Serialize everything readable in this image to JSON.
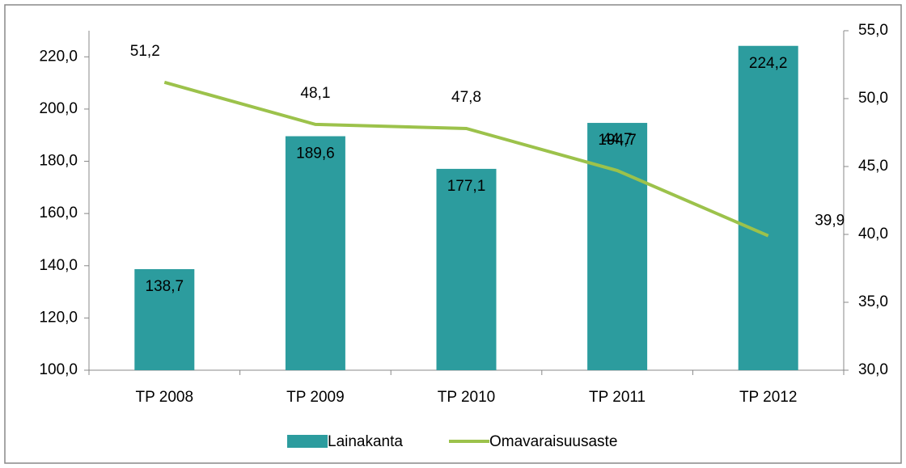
{
  "chart_data": {
    "type": "bar_line",
    "categories": [
      "TP 2008",
      "TP 2009",
      "TP 2010",
      "TP 2011",
      "TP 2012"
    ],
    "series": [
      {
        "name": "Lainakanta",
        "type": "bar",
        "color": "#2c9c9e",
        "values": [
          138.7,
          189.6,
          177.1,
          194.7,
          224.2
        ],
        "value_labels": [
          "138,7",
          "189,6",
          "177,1",
          "194,7",
          "224,2"
        ]
      },
      {
        "name": "Omavaraisuusaste",
        "type": "line",
        "axis": "y2",
        "color": "#9cc24b",
        "values": [
          51.2,
          48.1,
          47.8,
          44.7,
          39.9
        ],
        "value_labels": [
          "51,2",
          "48,1",
          "47,8",
          "44,7",
          "39,9"
        ]
      }
    ],
    "ylim": [
      100,
      230
    ],
    "yticks": [
      {
        "value": 100,
        "label": "100,0"
      },
      {
        "value": 120,
        "label": "120,0"
      },
      {
        "value": 140,
        "label": "140,0"
      },
      {
        "value": 160,
        "label": "160,0"
      },
      {
        "value": 180,
        "label": "180,0"
      },
      {
        "value": 200,
        "label": "200,0"
      },
      {
        "value": 220,
        "label": "220,0"
      }
    ],
    "y2lim": [
      30,
      55
    ],
    "y2ticks": [
      {
        "value": 30,
        "label": "30,0"
      },
      {
        "value": 35,
        "label": "35,0"
      },
      {
        "value": 40,
        "label": "40,0"
      },
      {
        "value": 45,
        "label": "45,0"
      },
      {
        "value": 50,
        "label": "50,0"
      },
      {
        "value": 55,
        "label": "55,0"
      }
    ],
    "legend": "bottom"
  }
}
